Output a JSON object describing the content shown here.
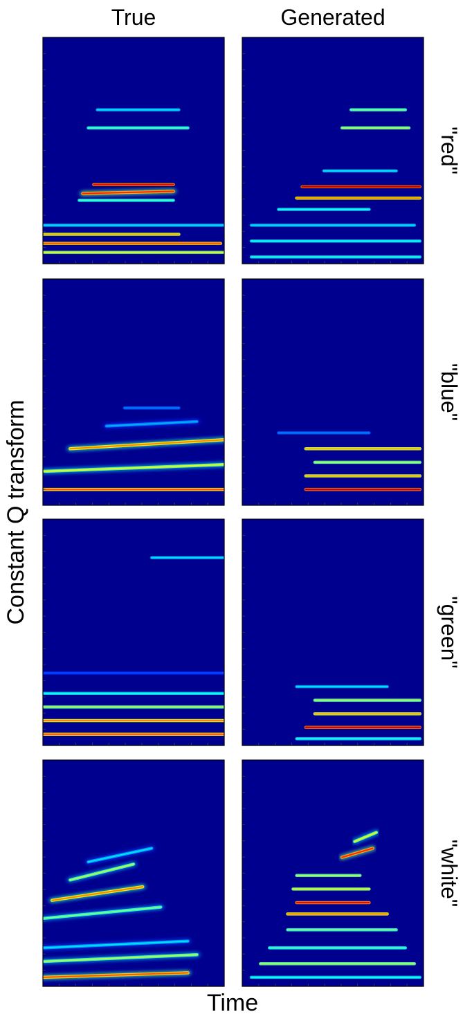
{
  "figure": {
    "column_titles": [
      "True",
      "Generated"
    ],
    "ylabel": "Constant Q transform",
    "xlabel": "Time"
  },
  "chart_data": {
    "type": "heatmap",
    "colormap": "jet",
    "background_color": "#00008f",
    "xlabel": "Time",
    "ylabel": "Constant Q transform",
    "columns": [
      "True",
      "Generated"
    ],
    "rows": [
      "\"red\"",
      "\"blue\"",
      "\"green\"",
      "\"white\""
    ],
    "x_tick_count": 11,
    "y_tick_count": 14,
    "panels": [
      {
        "row": "\"red\"",
        "column": "True",
        "bands": [
          {
            "freq": 0.13,
            "t0": 0.0,
            "t1": 0.75,
            "intensity": 0.7,
            "slope": 0.0
          },
          {
            "freq": 0.09,
            "t0": 0.0,
            "t1": 0.98,
            "intensity": 0.8,
            "slope": 0.0
          },
          {
            "freq": 0.05,
            "t0": 0.0,
            "t1": 1.0,
            "intensity": 0.6,
            "slope": 0.0
          },
          {
            "freq": 0.17,
            "t0": 0.0,
            "t1": 1.0,
            "intensity": 0.35,
            "slope": 0.0
          },
          {
            "freq": 0.31,
            "t0": 0.22,
            "t1": 0.72,
            "intensity": 0.85,
            "slope": 0.01
          },
          {
            "freq": 0.35,
            "t0": 0.28,
            "t1": 0.72,
            "intensity": 0.9,
            "slope": 0.0
          },
          {
            "freq": 0.28,
            "t0": 0.2,
            "t1": 0.72,
            "intensity": 0.45,
            "slope": 0.0
          },
          {
            "freq": 0.6,
            "t0": 0.25,
            "t1": 0.8,
            "intensity": 0.45,
            "slope": 0.0
          },
          {
            "freq": 0.68,
            "t0": 0.3,
            "t1": 0.75,
            "intensity": 0.35,
            "slope": 0.0
          }
        ]
      },
      {
        "row": "\"red\"",
        "column": "Generated",
        "bands": [
          {
            "freq": 0.03,
            "t0": 0.05,
            "t1": 0.98,
            "intensity": 0.4,
            "slope": 0.0
          },
          {
            "freq": 0.1,
            "t0": 0.05,
            "t1": 0.98,
            "intensity": 0.4,
            "slope": 0.0
          },
          {
            "freq": 0.17,
            "t0": 0.05,
            "t1": 0.95,
            "intensity": 0.35,
            "slope": 0.0
          },
          {
            "freq": 0.24,
            "t0": 0.2,
            "t1": 0.7,
            "intensity": 0.4,
            "slope": 0.0
          },
          {
            "freq": 0.29,
            "t0": 0.3,
            "t1": 0.98,
            "intensity": 0.75,
            "slope": 0.0
          },
          {
            "freq": 0.34,
            "t0": 0.33,
            "t1": 0.98,
            "intensity": 0.95,
            "slope": 0.0
          },
          {
            "freq": 0.41,
            "t0": 0.45,
            "t1": 0.85,
            "intensity": 0.35,
            "slope": 0.0
          },
          {
            "freq": 0.6,
            "t0": 0.55,
            "t1": 0.92,
            "intensity": 0.55,
            "slope": 0.0
          },
          {
            "freq": 0.68,
            "t0": 0.6,
            "t1": 0.9,
            "intensity": 0.5,
            "slope": 0.0
          }
        ]
      },
      {
        "row": "\"blue\"",
        "column": "True",
        "bands": [
          {
            "freq": 0.07,
            "t0": 0.0,
            "t1": 1.0,
            "intensity": 0.8,
            "slope": 0.0
          },
          {
            "freq": 0.15,
            "t0": 0.0,
            "t1": 1.0,
            "intensity": 0.6,
            "slope": 0.03
          },
          {
            "freq": 0.25,
            "t0": 0.15,
            "t1": 1.0,
            "intensity": 0.75,
            "slope": 0.04
          },
          {
            "freq": 0.35,
            "t0": 0.35,
            "t1": 0.85,
            "intensity": 0.3,
            "slope": 0.02
          },
          {
            "freq": 0.43,
            "t0": 0.45,
            "t1": 0.75,
            "intensity": 0.25,
            "slope": 0.0
          }
        ]
      },
      {
        "row": "\"blue\"",
        "column": "Generated",
        "bands": [
          {
            "freq": 0.07,
            "t0": 0.35,
            "t1": 0.98,
            "intensity": 0.95,
            "slope": 0.0
          },
          {
            "freq": 0.13,
            "t0": 0.35,
            "t1": 0.98,
            "intensity": 0.7,
            "slope": 0.0
          },
          {
            "freq": 0.19,
            "t0": 0.4,
            "t1": 0.98,
            "intensity": 0.55,
            "slope": 0.0
          },
          {
            "freq": 0.25,
            "t0": 0.35,
            "t1": 0.98,
            "intensity": 0.7,
            "slope": 0.0
          },
          {
            "freq": 0.32,
            "t0": 0.2,
            "t1": 0.7,
            "intensity": 0.25,
            "slope": 0.0
          }
        ]
      },
      {
        "row": "\"green\"",
        "column": "True",
        "bands": [
          {
            "freq": 0.05,
            "t0": 0.0,
            "t1": 1.0,
            "intensity": 0.8,
            "slope": 0.0
          },
          {
            "freq": 0.11,
            "t0": 0.0,
            "t1": 1.0,
            "intensity": 0.75,
            "slope": 0.0
          },
          {
            "freq": 0.17,
            "t0": 0.0,
            "t1": 1.0,
            "intensity": 0.55,
            "slope": 0.0
          },
          {
            "freq": 0.23,
            "t0": 0.0,
            "t1": 1.0,
            "intensity": 0.4,
            "slope": 0.0
          },
          {
            "freq": 0.32,
            "t0": 0.0,
            "t1": 1.0,
            "intensity": 0.2,
            "slope": 0.0
          },
          {
            "freq": 0.83,
            "t0": 0.6,
            "t1": 1.0,
            "intensity": 0.35,
            "slope": 0.0
          }
        ]
      },
      {
        "row": "\"green\"",
        "column": "Generated",
        "bands": [
          {
            "freq": 0.03,
            "t0": 0.3,
            "t1": 0.98,
            "intensity": 0.4,
            "slope": 0.0
          },
          {
            "freq": 0.08,
            "t0": 0.35,
            "t1": 0.98,
            "intensity": 0.95,
            "slope": 0.0
          },
          {
            "freq": 0.14,
            "t0": 0.4,
            "t1": 0.98,
            "intensity": 0.7,
            "slope": 0.0
          },
          {
            "freq": 0.2,
            "t0": 0.4,
            "t1": 0.98,
            "intensity": 0.55,
            "slope": 0.0
          },
          {
            "freq": 0.26,
            "t0": 0.3,
            "t1": 0.8,
            "intensity": 0.35,
            "slope": 0.0
          }
        ]
      },
      {
        "row": "\"white\"",
        "column": "True",
        "bands": [
          {
            "freq": 0.04,
            "t0": 0.0,
            "t1": 0.8,
            "intensity": 0.8,
            "slope": 0.02
          },
          {
            "freq": 0.11,
            "t0": 0.0,
            "t1": 0.85,
            "intensity": 0.55,
            "slope": 0.03
          },
          {
            "freq": 0.17,
            "t0": 0.0,
            "t1": 0.8,
            "intensity": 0.35,
            "slope": 0.03
          },
          {
            "freq": 0.3,
            "t0": 0.0,
            "t1": 0.65,
            "intensity": 0.5,
            "slope": 0.05
          },
          {
            "freq": 0.38,
            "t0": 0.05,
            "t1": 0.55,
            "intensity": 0.75,
            "slope": 0.06
          },
          {
            "freq": 0.47,
            "t0": 0.15,
            "t1": 0.5,
            "intensity": 0.55,
            "slope": 0.07
          },
          {
            "freq": 0.55,
            "t0": 0.25,
            "t1": 0.6,
            "intensity": 0.35,
            "slope": 0.06
          }
        ]
      },
      {
        "row": "\"white\"",
        "column": "Generated",
        "bands": [
          {
            "freq": 0.04,
            "t0": 0.05,
            "t1": 0.98,
            "intensity": 0.4,
            "slope": 0.0
          },
          {
            "freq": 0.1,
            "t0": 0.1,
            "t1": 0.95,
            "intensity": 0.55,
            "slope": 0.0
          },
          {
            "freq": 0.17,
            "t0": 0.15,
            "t1": 0.9,
            "intensity": 0.45,
            "slope": 0.0
          },
          {
            "freq": 0.25,
            "t0": 0.25,
            "t1": 0.85,
            "intensity": 0.5,
            "slope": 0.0
          },
          {
            "freq": 0.32,
            "t0": 0.25,
            "t1": 0.8,
            "intensity": 0.75,
            "slope": 0.0
          },
          {
            "freq": 0.37,
            "t0": 0.3,
            "t1": 0.7,
            "intensity": 0.9,
            "slope": 0.0
          },
          {
            "freq": 0.43,
            "t0": 0.28,
            "t1": 0.7,
            "intensity": 0.6,
            "slope": 0.0
          },
          {
            "freq": 0.49,
            "t0": 0.3,
            "t1": 0.65,
            "intensity": 0.55,
            "slope": 0.0
          },
          {
            "freq": 0.57,
            "t0": 0.55,
            "t1": 0.72,
            "intensity": 0.85,
            "slope": 0.04
          },
          {
            "freq": 0.64,
            "t0": 0.62,
            "t1": 0.74,
            "intensity": 0.6,
            "slope": 0.04
          }
        ]
      }
    ]
  }
}
